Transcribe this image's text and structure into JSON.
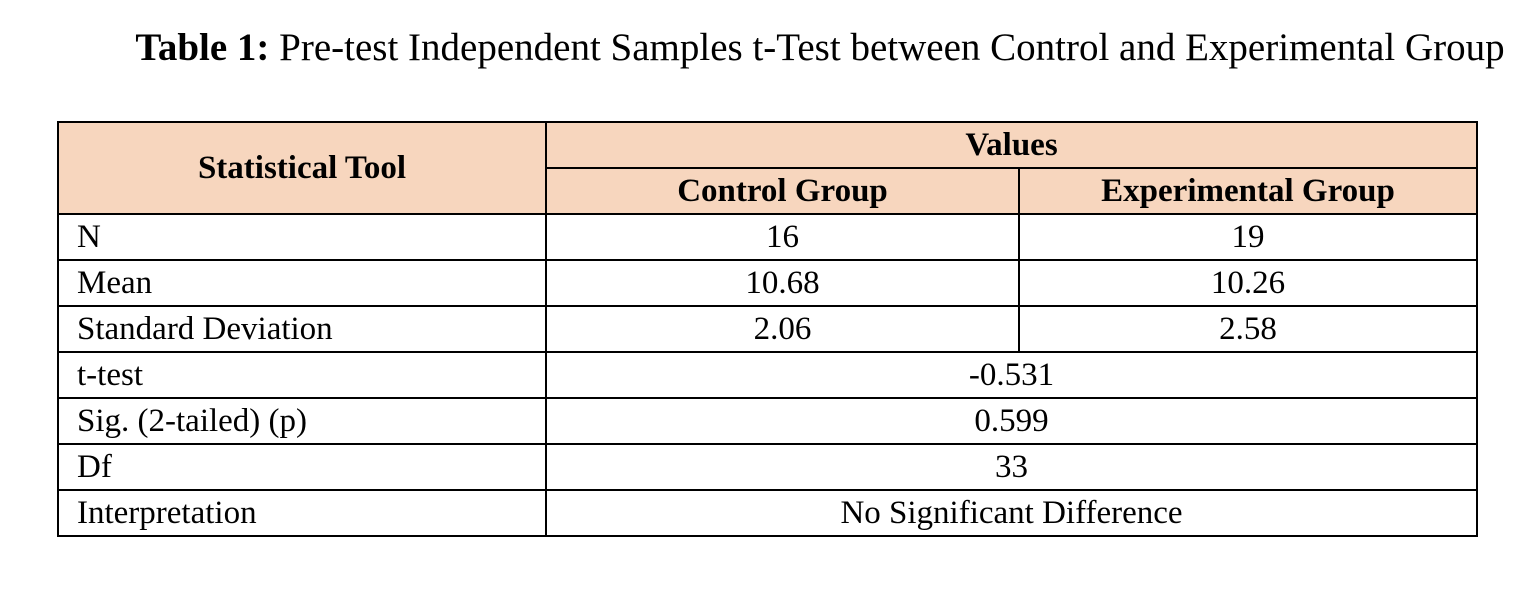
{
  "caption": {
    "label": "Table 1:",
    "text": " Pre-test Independent Samples t-Test between Control and Experimental Group"
  },
  "colors": {
    "header_background": "#f7d6be",
    "border": "#000000"
  },
  "table": {
    "headers": {
      "tool": "Statistical Tool",
      "values": "Values",
      "control": "Control Group",
      "experimental": "Experimental Group"
    },
    "rows": [
      {
        "label": "N",
        "control": "16",
        "experimental": "19"
      },
      {
        "label": "Mean",
        "control": "10.68",
        "experimental": "10.26"
      },
      {
        "label": "Standard Deviation",
        "control": "2.06",
        "experimental": "2.58"
      }
    ],
    "merged_rows": [
      {
        "label": "t-test",
        "value": "-0.531"
      },
      {
        "label": "Sig. (2-tailed) (p)",
        "value": "0.599"
      },
      {
        "label": "Df",
        "value": "33"
      },
      {
        "label": "Interpretation",
        "value": "No Significant Difference"
      }
    ]
  }
}
